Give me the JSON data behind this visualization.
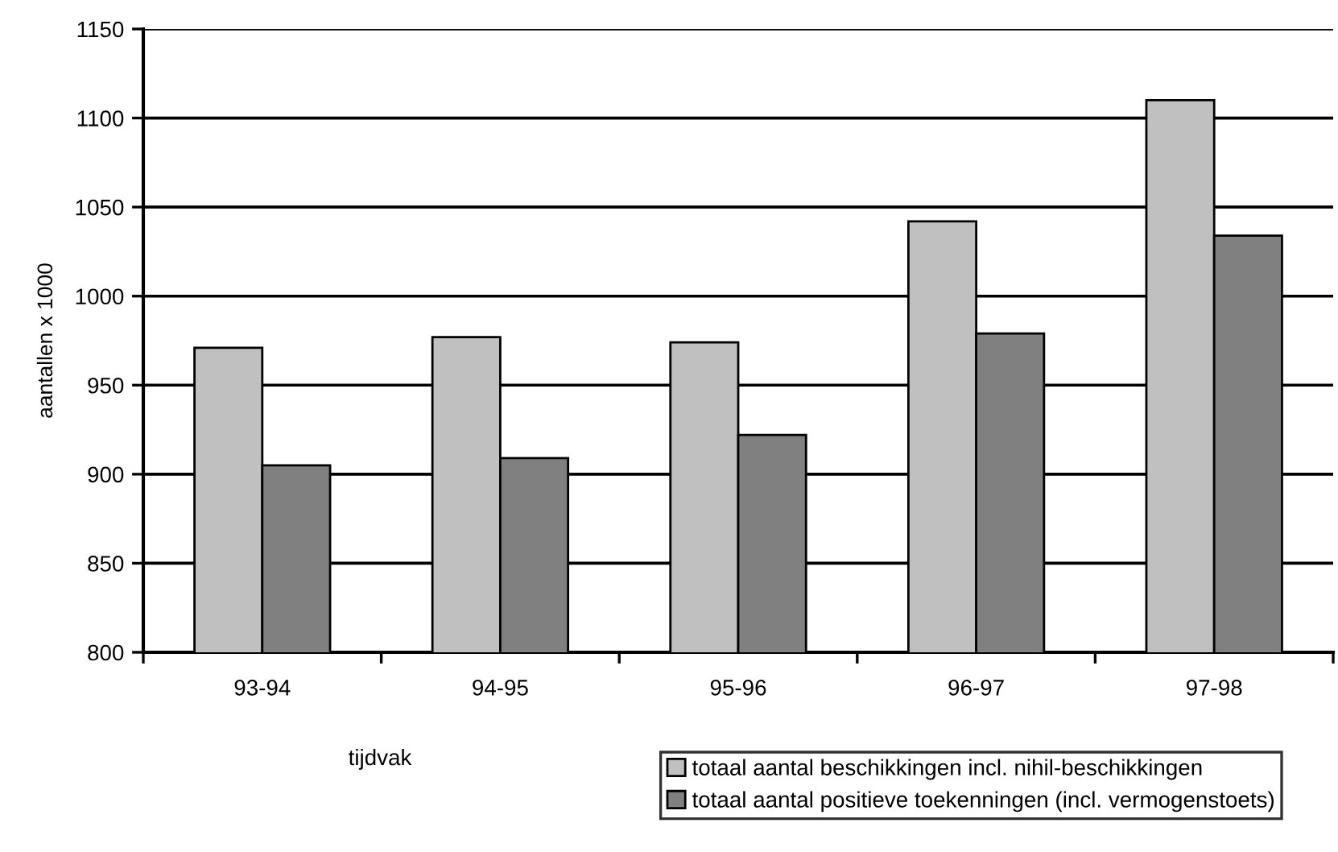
{
  "chart_data": {
    "type": "bar",
    "xlabel": "tijdvak",
    "ylabel": "aantallen x 1000",
    "categories": [
      "93-94",
      "94-95",
      "95-96",
      "96-97",
      "97-98"
    ],
    "series": [
      {
        "name": "totaal aantal beschikkingen incl. nihil-beschikkingen",
        "color": "#c0c0c0",
        "values": [
          971,
          977,
          974,
          1042,
          1110
        ]
      },
      {
        "name": "totaal aantal positieve toekenningen (incl. vermogenstoets)",
        "color": "#808080",
        "values": [
          905,
          909,
          922,
          979,
          1034
        ]
      }
    ],
    "ylim": [
      800,
      1150
    ],
    "yticks": [
      800,
      850,
      900,
      950,
      1000,
      1050,
      1100,
      1150
    ],
    "grid": "y",
    "legend": "bottom right"
  }
}
